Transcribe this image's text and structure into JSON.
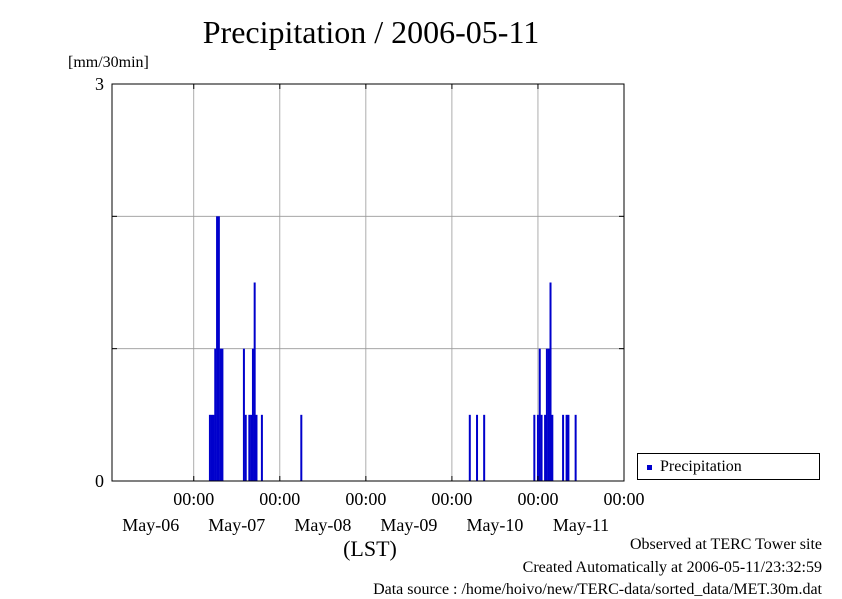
{
  "chart_data": {
    "type": "bar",
    "title": "Precipitation / 2006-05-11",
    "ylabel": "[mm/30min]",
    "xlabel": "(LST)",
    "ylim": [
      0,
      3
    ],
    "ytick_labels": [
      "0",
      "3"
    ],
    "x_range_days": [
      -0.95,
      5.0
    ],
    "x_ticks": [
      {
        "day": 0,
        "time": "00:00",
        "date": "May-06"
      },
      {
        "day": 1,
        "time": "00:00",
        "date": "May-07"
      },
      {
        "day": 2,
        "time": "00:00",
        "date": "May-08"
      },
      {
        "day": 3,
        "time": "00:00",
        "date": "May-09"
      },
      {
        "day": 4,
        "time": "00:00",
        "date": "May-10"
      },
      {
        "day": 5,
        "time": "00:00",
        "date": "May-11"
      }
    ],
    "grid": true,
    "legend_position": "right",
    "series": [
      {
        "name": "Precipitation",
        "color": "#0000cc",
        "points": [
          {
            "x": 0.188,
            "y": 0.5
          },
          {
            "x": 0.208,
            "y": 0.5
          },
          {
            "x": 0.229,
            "y": 0.5
          },
          {
            "x": 0.25,
            "y": 1.0
          },
          {
            "x": 0.271,
            "y": 2.0
          },
          {
            "x": 0.292,
            "y": 2.0
          },
          {
            "x": 0.313,
            "y": 1.0
          },
          {
            "x": 0.333,
            "y": 1.0
          },
          {
            "x": 0.583,
            "y": 1.0
          },
          {
            "x": 0.604,
            "y": 0.5
          },
          {
            "x": 0.646,
            "y": 0.5
          },
          {
            "x": 0.667,
            "y": 0.5
          },
          {
            "x": 0.688,
            "y": 1.0
          },
          {
            "x": 0.708,
            "y": 1.5
          },
          {
            "x": 0.729,
            "y": 0.5
          },
          {
            "x": 0.792,
            "y": 0.5
          },
          {
            "x": 1.25,
            "y": 0.5
          },
          {
            "x": 3.208,
            "y": 0.5
          },
          {
            "x": 3.292,
            "y": 0.5
          },
          {
            "x": 3.375,
            "y": 0.5
          },
          {
            "x": 3.958,
            "y": 0.5
          },
          {
            "x": 4.0,
            "y": 0.5
          },
          {
            "x": 4.021,
            "y": 1.0
          },
          {
            "x": 4.042,
            "y": 0.5
          },
          {
            "x": 4.083,
            "y": 0.5
          },
          {
            "x": 4.104,
            "y": 1.0
          },
          {
            "x": 4.125,
            "y": 1.0
          },
          {
            "x": 4.146,
            "y": 1.5
          },
          {
            "x": 4.167,
            "y": 0.5
          },
          {
            "x": 4.292,
            "y": 0.5
          },
          {
            "x": 4.333,
            "y": 0.5
          },
          {
            "x": 4.354,
            "y": 0.5
          },
          {
            "x": 4.438,
            "y": 0.5
          }
        ]
      }
    ]
  },
  "legend": {
    "label": "Precipitation",
    "color": "#0000cc"
  },
  "footer": {
    "line1": "Observed at TERC Tower site",
    "line2": "Created Automatically at 2006-05-11/23:32:59",
    "line3": "Data source : /home/hoivo/new/TERC-data/sorted_data/MET.30m.dat"
  }
}
